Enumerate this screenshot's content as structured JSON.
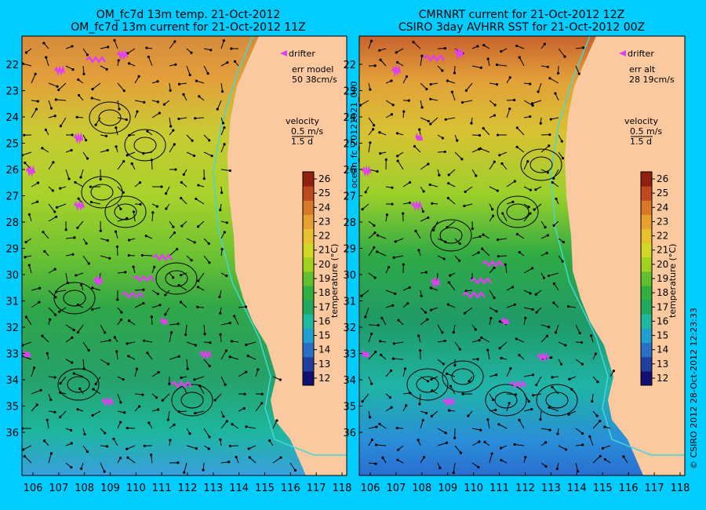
{
  "panels": [
    {
      "title_line1": "OM_fc7d 13m temp. 21-Oct-2012",
      "title_line2": "OM_fc7d 13m current for 21-Oct-2012 11Z",
      "legend_drifter": "drifter",
      "err_label": "err model",
      "err_value": "50 38cm/s",
      "velocity_label": "velocity",
      "velocity_scale": "0.5 m/s",
      "velocity_duration": "1.5 d"
    },
    {
      "title_line1": "CMRNRT current for 21-Oct-2012 12Z",
      "title_line2": "CSIRO 3day AVHRR SST for 21-Oct-2012 00Z",
      "legend_drifter": "drifter",
      "err_label": "err alt",
      "err_value": "28 19cm/s",
      "velocity_label": "velocity",
      "velocity_scale": "0.5 m/s",
      "velocity_duration": "1.5 d"
    }
  ],
  "colorbar": {
    "label": "temperature (°C)",
    "ticks": [
      "12",
      "13",
      "14",
      "15",
      "16",
      "17",
      "18",
      "19",
      "20",
      "21",
      "22",
      "23",
      "24",
      "25",
      "26"
    ],
    "colors": [
      "#101070",
      "#2040a0",
      "#2a70c8",
      "#20a0d0",
      "#20b8a0",
      "#20a860",
      "#30b040",
      "#60c030",
      "#a0d020",
      "#d0d828",
      "#e8c030",
      "#e8a030",
      "#d87828",
      "#c04820",
      "#902010"
    ]
  },
  "lat_ticks": [
    "22",
    "23",
    "24",
    "25",
    "26",
    "27",
    "28",
    "29",
    "30",
    "31",
    "32",
    "33",
    "34",
    "35",
    "36"
  ],
  "lon_ticks": [
    "106",
    "107",
    "108",
    "109",
    "110",
    "111",
    "112",
    "113",
    "114",
    "115",
    "116",
    "117",
    "118"
  ],
  "side_label_left": "ocean_fc_20121021_000",
  "side_label_right": "© CSIRO 2012   28-Oct-2012 12:23:33",
  "colors": {
    "background": "#00ccff",
    "land": "#fac9a0",
    "drifter": "#e040f0",
    "coast_current": "#40d8d8"
  }
}
